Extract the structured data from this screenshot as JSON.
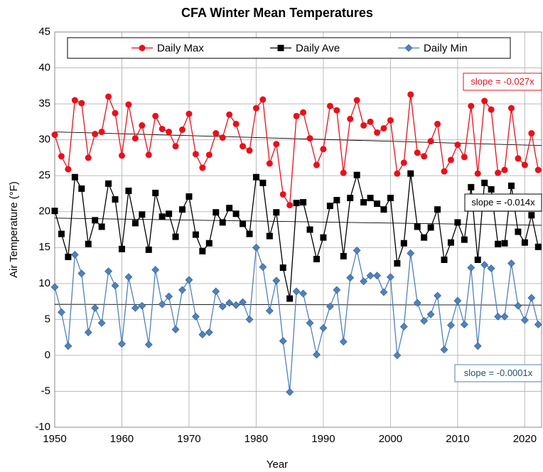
{
  "chart_data": {
    "type": "line",
    "title": "CFA Winter Mean Temperatures",
    "xlabel": "Year",
    "ylabel": "Air Temperature (°F)",
    "x": [
      1950,
      1951,
      1952,
      1953,
      1954,
      1955,
      1956,
      1957,
      1958,
      1959,
      1960,
      1961,
      1962,
      1963,
      1964,
      1965,
      1966,
      1967,
      1968,
      1969,
      1970,
      1971,
      1972,
      1973,
      1974,
      1975,
      1976,
      1977,
      1978,
      1979,
      1980,
      1981,
      1982,
      1983,
      1984,
      1985,
      1986,
      1987,
      1988,
      1989,
      1990,
      1991,
      1992,
      1993,
      1994,
      1995,
      1996,
      1997,
      1998,
      1999,
      2000,
      2001,
      2002,
      2003,
      2004,
      2005,
      2006,
      2007,
      2008,
      2009,
      2010,
      2011,
      2012,
      2013,
      2014,
      2015,
      2016,
      2017,
      2018,
      2019,
      2020,
      2021,
      2022
    ],
    "series": [
      {
        "name": "Daily Max",
        "color": "#e8101a",
        "marker": "circle",
        "values": [
          30.7,
          27.7,
          25.9,
          35.5,
          35.1,
          27.5,
          30.8,
          31.1,
          36.0,
          33.7,
          27.8,
          34.9,
          30.2,
          32.0,
          27.9,
          33.3,
          31.5,
          31.1,
          29.1,
          31.4,
          33.6,
          28.0,
          26.1,
          27.9,
          30.9,
          30.3,
          33.5,
          32.2,
          29.1,
          28.5,
          34.4,
          35.6,
          26.7,
          29.4,
          22.4,
          20.9,
          33.3,
          33.8,
          30.2,
          26.5,
          28.7,
          34.7,
          34.1,
          25.4,
          32.9,
          35.5,
          32.0,
          32.5,
          31.0,
          31.6,
          32.7,
          25.3,
          26.8,
          36.3,
          28.2,
          27.7,
          29.8,
          32.2,
          25.6,
          27.2,
          29.3,
          27.6,
          34.7,
          25.3,
          35.4,
          34.2,
          25.4,
          25.8,
          34.4,
          27.4,
          26.5,
          30.9,
          25.8
        ],
        "trend": [
          31.1,
          29.2
        ],
        "slope_label": "slope = -0.027x"
      },
      {
        "name": "Daily Ave",
        "color": "#000000",
        "marker": "square",
        "values": [
          20.1,
          16.9,
          13.7,
          24.8,
          23.2,
          15.5,
          18.8,
          17.9,
          23.9,
          21.7,
          14.8,
          22.9,
          18.4,
          19.6,
          14.7,
          22.6,
          19.3,
          19.7,
          16.5,
          20.3,
          22.1,
          16.8,
          14.5,
          15.6,
          19.9,
          18.5,
          20.5,
          19.7,
          18.3,
          16.9,
          24.8,
          24.0,
          16.6,
          19.9,
          12.2,
          7.9,
          21.2,
          21.3,
          17.5,
          13.4,
          16.4,
          20.8,
          21.6,
          13.8,
          21.9,
          25.1,
          21.3,
          21.9,
          21.1,
          20.3,
          21.9,
          12.8,
          15.6,
          25.3,
          17.9,
          16.4,
          17.8,
          20.3,
          13.3,
          15.7,
          18.5,
          16.1,
          23.4,
          13.3,
          24.0,
          23.1,
          15.5,
          15.6,
          23.6,
          17.2,
          15.7,
          19.5,
          15.1
        ],
        "trend": [
          19.1,
          18.1
        ],
        "slope_label": "slope = -0.014x"
      },
      {
        "name": "Daily Min",
        "color": "#4f81bd",
        "marker": "diamond",
        "values": [
          9.5,
          6.0,
          1.3,
          14.0,
          11.4,
          3.2,
          6.6,
          4.5,
          11.7,
          9.7,
          1.6,
          10.9,
          6.6,
          6.9,
          1.5,
          11.9,
          7.1,
          8.2,
          3.6,
          9.1,
          10.5,
          5.4,
          2.9,
          3.2,
          8.9,
          6.8,
          7.3,
          7.0,
          7.4,
          5.0,
          15.0,
          12.3,
          6.2,
          10.4,
          2.0,
          -5.1,
          8.9,
          8.6,
          4.5,
          0.1,
          3.8,
          6.8,
          9.1,
          1.9,
          10.8,
          14.6,
          10.3,
          11.1,
          11.1,
          8.8,
          10.9,
          0.0,
          4.0,
          14.2,
          7.3,
          4.8,
          5.7,
          8.3,
          0.8,
          4.2,
          7.6,
          4.3,
          12.2,
          1.3,
          12.6,
          12.1,
          5.4,
          5.4,
          12.8,
          6.9,
          4.9,
          8.0,
          4.3
        ],
        "trend": [
          7.1,
          7.0
        ],
        "slope_label": "slope = -0.0001x"
      }
    ],
    "xlim": [
      1950,
      2022.5
    ],
    "ylim": [
      -10,
      45
    ],
    "xticks": [
      1950,
      1960,
      1970,
      1980,
      1990,
      2000,
      2010,
      2020
    ],
    "yticks": [
      -10,
      -5,
      0,
      5,
      10,
      15,
      20,
      25,
      30,
      35,
      40,
      45
    ],
    "grid": true
  }
}
